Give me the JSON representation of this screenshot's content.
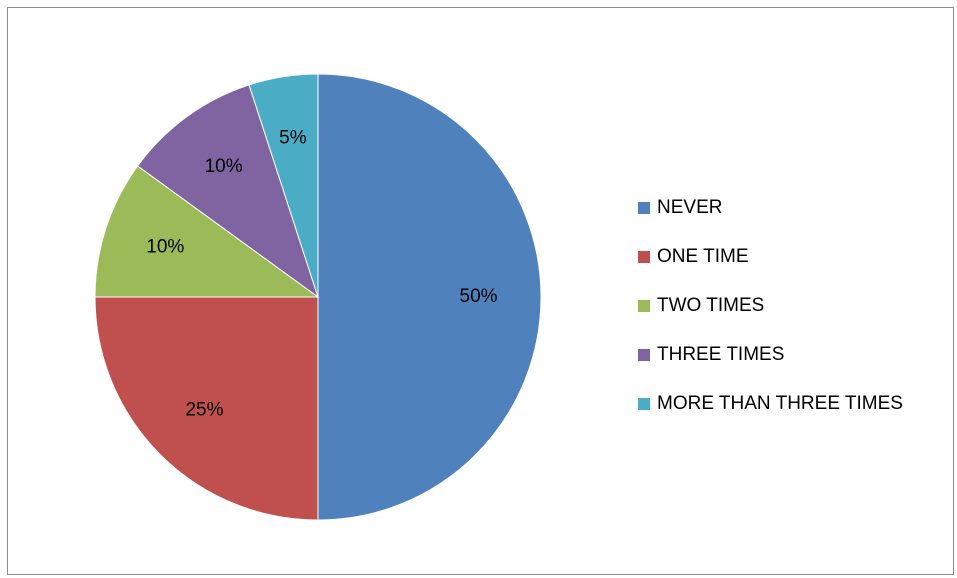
{
  "chart_data": {
    "type": "pie",
    "title": "",
    "categories": [
      "NEVER",
      "ONE TIME",
      "TWO TIMES",
      "THREE TIMES",
      "MORE THAN THREE TIMES"
    ],
    "values": [
      50,
      25,
      10,
      10,
      5
    ],
    "labels": [
      "50%",
      "25%",
      "10%",
      "10%",
      "5%"
    ],
    "colors": [
      "#4f81bd",
      "#c0504d",
      "#9bbb59",
      "#8064a2",
      "#4bacc6"
    ],
    "start_angle": "12 o'clock",
    "direction": "clockwise",
    "legend_position": "right"
  }
}
